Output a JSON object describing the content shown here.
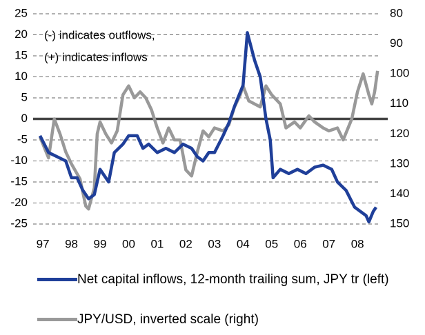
{
  "chart_data": {
    "type": "line",
    "annotations": [
      "(-) indicates outflows,",
      "(+) indicates inflows"
    ],
    "xlim": [
      1996.66,
      2008.72
    ],
    "xticks": [
      {
        "value": 1997,
        "label": "97"
      },
      {
        "value": 1998,
        "label": "98"
      },
      {
        "value": 1999,
        "label": "99"
      },
      {
        "value": 2000,
        "label": "00"
      },
      {
        "value": 2001,
        "label": "01"
      },
      {
        "value": 2002,
        "label": "02"
      },
      {
        "value": 2003,
        "label": "03"
      },
      {
        "value": 2004,
        "label": "04"
      },
      {
        "value": 2005,
        "label": "05"
      },
      {
        "value": 2006,
        "label": "06"
      },
      {
        "value": 2007,
        "label": "07"
      },
      {
        "value": 2008,
        "label": "08"
      }
    ],
    "ylim": [
      -25,
      25
    ],
    "yticks": [
      -25,
      -20,
      -15,
      -10,
      -5,
      0,
      5,
      10,
      15,
      20,
      25
    ],
    "y2lim": [
      150,
      80
    ],
    "y2ticks": [
      80,
      90,
      100,
      110,
      120,
      130,
      140,
      150
    ],
    "y2_inverted": true,
    "grid": true,
    "series": [
      {
        "name": "Net capital inflows, 12-month trailing sum, JPY tr (left)",
        "color": "#1f3f99",
        "x": [
          1996.9,
          1997.2,
          1997.5,
          1997.8,
          1998.0,
          1998.2,
          1998.4,
          1998.6,
          1998.8,
          1999.0,
          1999.3,
          1999.5,
          1999.8,
          2000.0,
          2000.3,
          2000.5,
          2000.7,
          2001.0,
          2001.3,
          2001.6,
          2001.9,
          2002.2,
          2002.4,
          2002.6,
          2002.8,
          2003.0,
          2003.3,
          2003.5,
          2003.7,
          2004.0,
          2004.15,
          2004.4,
          2004.6,
          2004.8,
          2004.95,
          2005.05,
          2005.3,
          2005.6,
          2005.9,
          2006.2,
          2006.5,
          2006.8,
          2007.1,
          2007.3,
          2007.6,
          2007.9,
          2008.1,
          2008.3,
          2008.4,
          2008.55,
          2008.65
        ],
        "values": [
          -4,
          -8,
          -9,
          -10,
          -14,
          -14,
          -17,
          -19,
          -18,
          -12,
          -15,
          -8,
          -6,
          -4,
          -4,
          -7,
          -6,
          -8,
          -7,
          -8,
          -6,
          -7,
          -9,
          -10,
          -8,
          -8,
          -4,
          -1,
          3,
          8,
          20.5,
          14,
          10,
          0,
          -5,
          -14,
          -12,
          -13,
          -12,
          -13,
          -11.5,
          -11,
          -12,
          -15,
          -17,
          -21,
          -22,
          -23,
          -24.5,
          -22,
          -21
        ]
      },
      {
        "name": "JPY/USD, inverted scale (right)",
        "color": "#999999",
        "axis": "y2",
        "x": [
          1996.9,
          1997.2,
          1997.4,
          1997.6,
          1997.8,
          1998.0,
          1998.3,
          1998.5,
          1998.6,
          1998.8,
          1998.9,
          1999.0,
          1999.2,
          1999.4,
          1999.6,
          1999.8,
          2000.0,
          2000.2,
          2000.4,
          2000.6,
          2000.8,
          2001.0,
          2001.2,
          2001.4,
          2001.6,
          2001.8,
          2002.0,
          2002.2,
          2002.4,
          2002.6,
          2002.8,
          2003.0,
          2003.3,
          2003.5,
          2003.7,
          2003.9,
          2004.0,
          2004.2,
          2004.4,
          2004.6,
          2004.8,
          2005.0,
          2005.3,
          2005.5,
          2005.8,
          2006.0,
          2006.3,
          2006.5,
          2006.8,
          2007.0,
          2007.3,
          2007.5,
          2007.8,
          2008.0,
          2008.2,
          2008.4,
          2008.5,
          2008.6,
          2008.7
        ],
        "values": [
          121,
          128,
          115,
          120,
          126,
          130,
          135,
          144,
          145,
          138,
          120,
          116,
          120,
          123,
          119,
          107,
          104,
          108,
          106,
          108,
          112,
          118,
          123,
          118,
          122,
          122,
          132,
          134,
          126,
          119,
          121,
          118,
          119,
          117,
          111,
          107,
          104,
          109,
          110,
          111,
          104,
          107,
          110,
          118,
          116,
          118,
          114,
          116,
          118,
          119,
          118,
          122,
          115,
          106,
          100,
          107,
          110,
          106,
          99
        ]
      }
    ]
  }
}
